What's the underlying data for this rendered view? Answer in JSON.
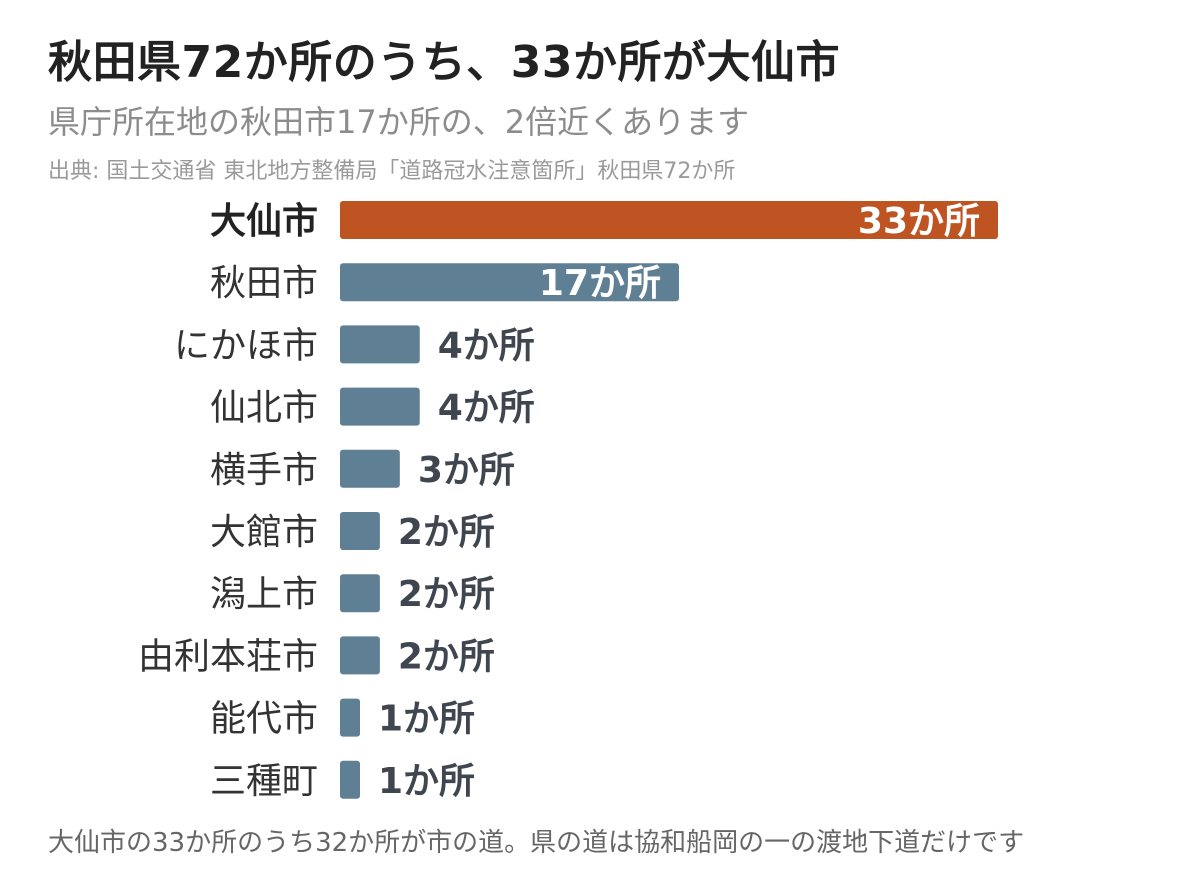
{
  "header": {
    "title": "秋田県72か所のうち、33か所が大仙市",
    "subtitle": "県庁所在地の秋田市17か所の、2倍近くあります",
    "source": "出典: 国土交通省 東北地方整備局「道路冠水注意箇所」秋田県72か所"
  },
  "footer": {
    "note": "大仙市の33か所のうち32か所が市の道。県の道は協和船岡の一の渡地下道だけです"
  },
  "colors": {
    "highlight": "#bf5423",
    "default": "#5e7f94",
    "label_dark": "#222222",
    "label_normal": "#333333",
    "value_outside": "#3f4650",
    "value_inside": "#ffffff"
  },
  "chart_data": {
    "type": "bar",
    "orientation": "horizontal",
    "unit_suffix": "か所",
    "xlim": [
      0,
      33
    ],
    "categories": [
      "大仙市",
      "秋田市",
      "にかほ市",
      "仙北市",
      "横手市",
      "大館市",
      "潟上市",
      "由利本荘市",
      "能代市",
      "三種町"
    ],
    "values": [
      33,
      17,
      4,
      4,
      3,
      2,
      2,
      2,
      1,
      1
    ],
    "value_labels": [
      "33か所",
      "17か所",
      "4か所",
      "4か所",
      "3か所",
      "2か所",
      "2か所",
      "2か所",
      "1か所",
      "1か所"
    ],
    "highlight": "大仙市",
    "grid": false,
    "legend": "none"
  }
}
